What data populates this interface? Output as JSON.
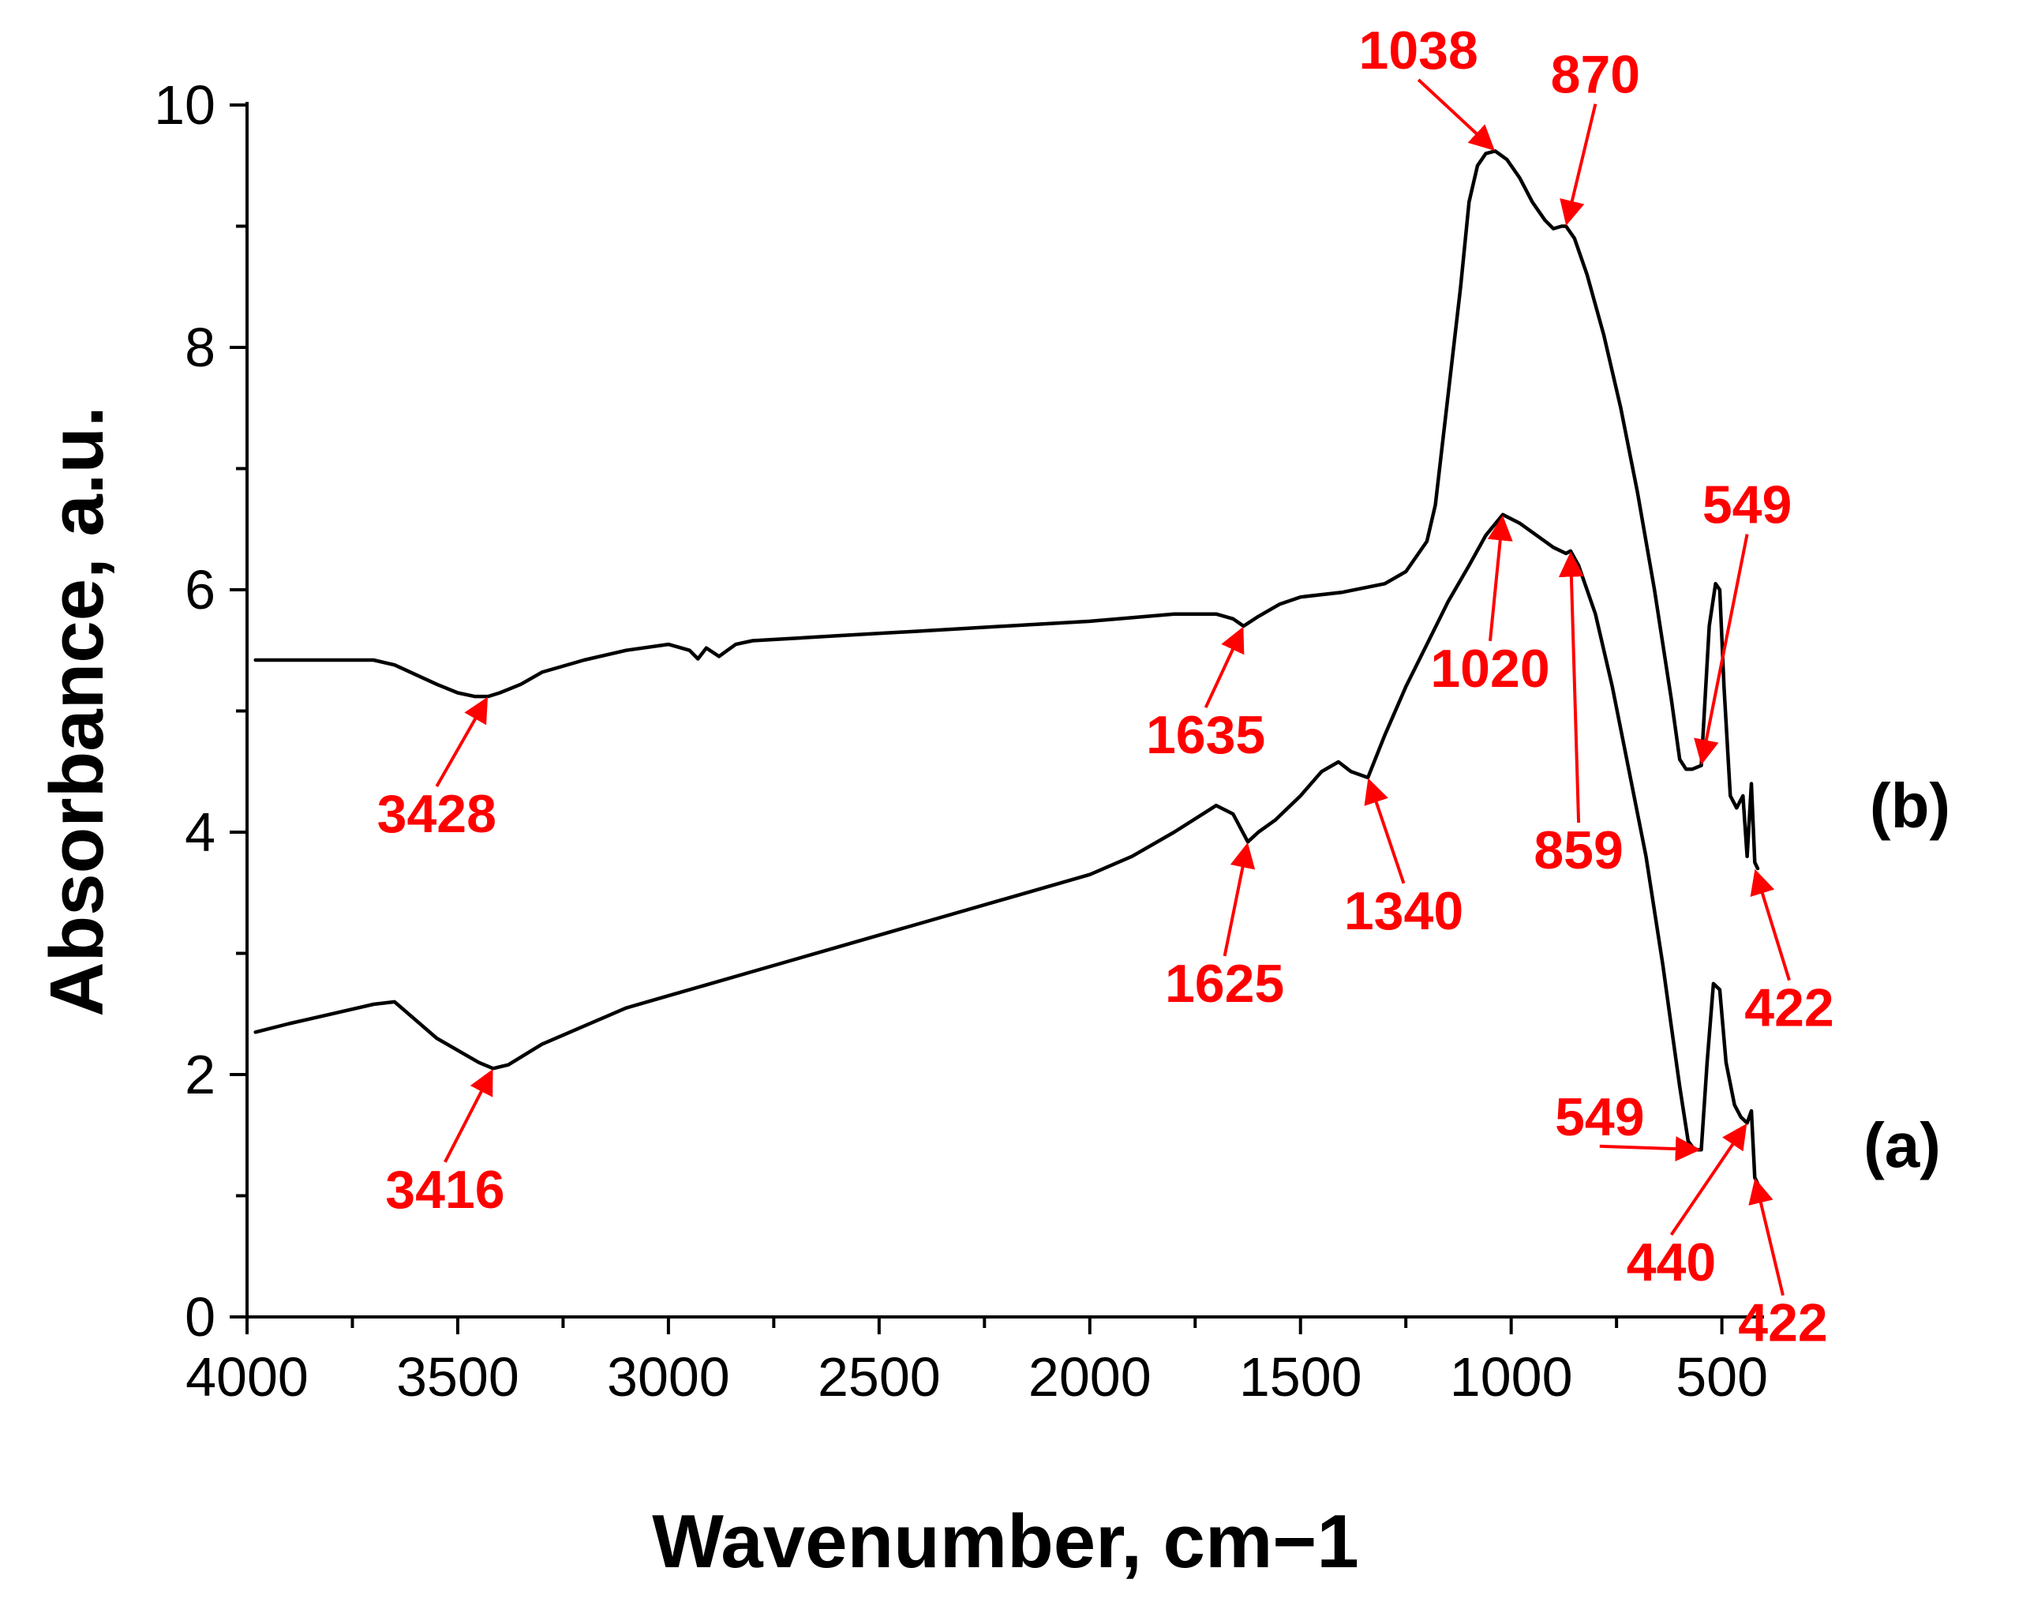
{
  "chart_data": {
    "type": "line",
    "title": "",
    "xlabel": "Wavenumber, cm−1",
    "ylabel": "Absorbance, a.u.",
    "xlim": [
      4000,
      400
    ],
    "ylim": [
      0,
      10
    ],
    "x_ticks": [
      4000,
      3500,
      3000,
      2500,
      2000,
      1500,
      1000,
      500
    ],
    "x_tick_labels": [
      "4000",
      "3500",
      "3000",
      "2500",
      "2000",
      "1500",
      "1000",
      "500"
    ],
    "y_ticks": [
      0,
      2,
      4,
      6,
      8,
      10
    ],
    "y_tick_labels": [
      "0",
      "2",
      "4",
      "6",
      "8",
      "10"
    ],
    "grid": false,
    "colors": {
      "line": "#000000",
      "annotation": "#ff0000"
    },
    "series": [
      {
        "name": "(a)",
        "label": "(a)",
        "x": [
          3980,
          3900,
          3800,
          3700,
          3650,
          3600,
          3550,
          3500,
          3450,
          3416,
          3380,
          3300,
          3200,
          3100,
          3000,
          2800,
          2600,
          2400,
          2200,
          2000,
          1900,
          1800,
          1700,
          1660,
          1625,
          1600,
          1560,
          1500,
          1450,
          1410,
          1380,
          1340,
          1300,
          1250,
          1200,
          1150,
          1100,
          1060,
          1020,
          980,
          940,
          900,
          870,
          859,
          840,
          800,
          760,
          720,
          680,
          640,
          620,
          600,
          580,
          565,
          549,
          535,
          520,
          505,
          490,
          470,
          455,
          440,
          430,
          422,
          415
        ],
        "y": [
          2.35,
          2.42,
          2.5,
          2.58,
          2.6,
          2.45,
          2.3,
          2.2,
          2.1,
          2.05,
          2.08,
          2.25,
          2.4,
          2.55,
          2.65,
          2.85,
          3.05,
          3.25,
          3.45,
          3.65,
          3.8,
          4.0,
          4.22,
          4.15,
          3.92,
          4.0,
          4.1,
          4.3,
          4.5,
          4.58,
          4.5,
          4.45,
          4.8,
          5.2,
          5.55,
          5.9,
          6.2,
          6.45,
          6.62,
          6.55,
          6.45,
          6.35,
          6.3,
          6.32,
          6.2,
          5.8,
          5.2,
          4.5,
          3.8,
          2.9,
          2.4,
          1.9,
          1.45,
          1.38,
          1.38,
          2.1,
          2.75,
          2.7,
          2.1,
          1.75,
          1.65,
          1.6,
          1.7,
          1.15,
          1.1
        ]
      },
      {
        "name": "(b)",
        "label": "(b)",
        "x": [
          3980,
          3900,
          3800,
          3700,
          3650,
          3600,
          3550,
          3500,
          3460,
          3428,
          3400,
          3350,
          3300,
          3200,
          3100,
          3000,
          2950,
          2930,
          2910,
          2880,
          2860,
          2840,
          2800,
          2600,
          2400,
          2200,
          2000,
          1800,
          1700,
          1660,
          1635,
          1600,
          1550,
          1500,
          1400,
          1300,
          1250,
          1200,
          1180,
          1150,
          1120,
          1100,
          1080,
          1060,
          1038,
          1010,
          980,
          950,
          920,
          900,
          880,
          870,
          850,
          820,
          780,
          740,
          700,
          660,
          620,
          600,
          585,
          570,
          549,
          530,
          515,
          505,
          495,
          480,
          465,
          450,
          440,
          430,
          422,
          415
        ],
        "y": [
          5.42,
          5.42,
          5.42,
          5.42,
          5.38,
          5.3,
          5.22,
          5.15,
          5.12,
          5.12,
          5.15,
          5.22,
          5.32,
          5.42,
          5.5,
          5.55,
          5.5,
          5.43,
          5.52,
          5.45,
          5.5,
          5.55,
          5.58,
          5.62,
          5.66,
          5.7,
          5.74,
          5.8,
          5.8,
          5.76,
          5.7,
          5.78,
          5.88,
          5.94,
          5.98,
          6.05,
          6.15,
          6.4,
          6.7,
          7.6,
          8.5,
          9.2,
          9.5,
          9.6,
          9.62,
          9.55,
          9.4,
          9.2,
          9.05,
          8.98,
          9.0,
          9.0,
          8.9,
          8.6,
          8.1,
          7.5,
          6.8,
          6.0,
          5.1,
          4.6,
          4.52,
          4.52,
          4.55,
          5.7,
          6.05,
          6.0,
          5.2,
          4.3,
          4.2,
          4.3,
          3.8,
          4.4,
          3.75,
          3.7
        ]
      }
    ],
    "annotations": [
      {
        "label": "3416",
        "series": "(a)",
        "x": 3416,
        "y": 2.05,
        "tx": 3530,
        "ty": 0.9
      },
      {
        "label": "1625",
        "series": "(a)",
        "x": 1625,
        "y": 3.92,
        "tx": 1680,
        "ty": 2.6
      },
      {
        "label": "1340",
        "series": "(a)",
        "x": 1340,
        "y": 4.45,
        "tx": 1255,
        "ty": 3.2
      },
      {
        "label": "1020",
        "series": "(a)",
        "x": 1020,
        "y": 6.62,
        "tx": 1050,
        "ty": 5.2
      },
      {
        "label": "859",
        "series": "(a)",
        "x": 859,
        "y": 6.32,
        "tx": 840,
        "ty": 3.7
      },
      {
        "label": "549",
        "series": "(a)",
        "x": 549,
        "y": 1.38,
        "tx": 790,
        "ty": 1.5
      },
      {
        "label": "440",
        "series": "(a)",
        "x": 440,
        "y": 1.6,
        "tx": 620,
        "ty": 0.3
      },
      {
        "label": "422",
        "series": "(a)",
        "x": 422,
        "y": 1.15,
        "tx": 355,
        "ty": -0.2
      },
      {
        "label": "3428",
        "series": "(b)",
        "x": 3428,
        "y": 5.12,
        "tx": 3550,
        "ty": 4.0
      },
      {
        "label": "1635",
        "series": "(b)",
        "x": 1635,
        "y": 5.7,
        "tx": 1725,
        "ty": 4.65
      },
      {
        "label": "1038",
        "series": "(b)",
        "x": 1038,
        "y": 9.62,
        "tx": 1220,
        "ty": 10.3
      },
      {
        "label": "870",
        "series": "(b)",
        "x": 870,
        "y": 9.0,
        "tx": 800,
        "ty": 10.1
      },
      {
        "label": "549",
        "series": "(b)",
        "x": 549,
        "y": 4.55,
        "tx": 440,
        "ty": 6.55
      },
      {
        "label": "422",
        "series": "(b)",
        "x": 422,
        "y": 3.7,
        "tx": 340,
        "ty": 2.4
      }
    ]
  }
}
